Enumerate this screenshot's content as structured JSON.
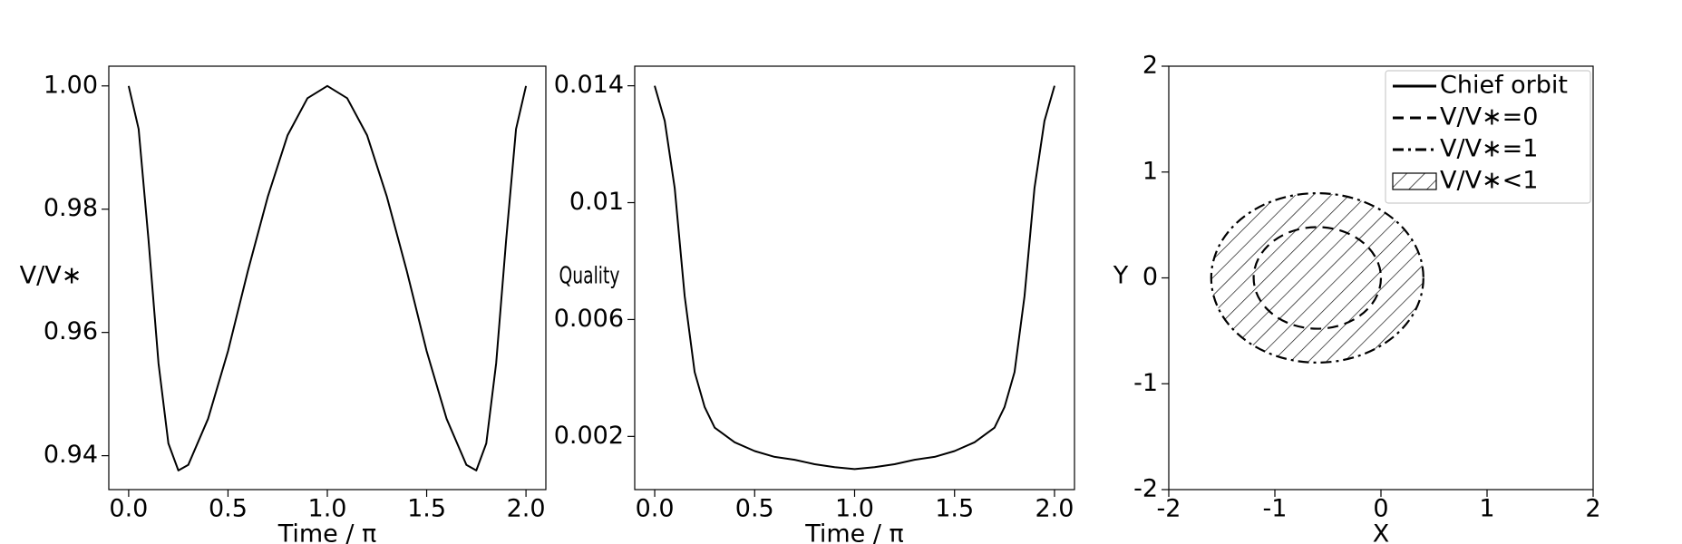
{
  "chart_data": [
    {
      "type": "line",
      "xlabel": "Time / π",
      "ylabel": "V/V∗",
      "color": "#000000",
      "x": [
        0,
        0.05,
        0.1,
        0.15,
        0.2,
        0.25,
        0.3,
        0.4,
        0.5,
        0.6,
        0.7,
        0.8,
        0.9,
        1.0,
        1.1,
        1.2,
        1.3,
        1.4,
        1.5,
        1.6,
        1.7,
        1.75,
        1.8,
        1.85,
        1.9,
        1.95,
        2.0
      ],
      "values": [
        1.0,
        0.993,
        0.975,
        0.955,
        0.942,
        0.9376,
        0.9385,
        0.946,
        0.957,
        0.97,
        0.982,
        0.992,
        0.998,
        1.0,
        0.998,
        0.992,
        0.982,
        0.97,
        0.957,
        0.946,
        0.9385,
        0.9376,
        0.942,
        0.955,
        0.975,
        0.993,
        1.0
      ],
      "xlim": [
        -0.1,
        2.1
      ],
      "ylim": [
        0.9345,
        1.0032
      ],
      "xticks": [
        {
          "value": 0,
          "label": "0.0"
        },
        {
          "value": 0.5,
          "label": "0.5"
        },
        {
          "value": 1,
          "label": "1.0"
        },
        {
          "value": 1.5,
          "label": "1.5"
        },
        {
          "value": 2,
          "label": "2.0"
        }
      ],
      "yticks": [
        0.94,
        0.96,
        0.98,
        {
          "value": 1,
          "label": "1.00"
        }
      ]
    },
    {
      "type": "line",
      "xlabel": "Time / π",
      "ylabel": "Quality",
      "color": "#000000",
      "x": [
        0,
        0.05,
        0.1,
        0.15,
        0.2,
        0.25,
        0.3,
        0.4,
        0.5,
        0.6,
        0.7,
        0.8,
        0.9,
        1.0,
        1.1,
        1.2,
        1.3,
        1.4,
        1.5,
        1.6,
        1.7,
        1.75,
        1.8,
        1.85,
        1.9,
        1.95,
        2.0
      ],
      "values": [
        0.014,
        0.0128,
        0.0105,
        0.0068,
        0.0042,
        0.003,
        0.0023,
        0.0018,
        0.0015,
        0.0013,
        0.0012,
        0.00105,
        0.00095,
        0.00088,
        0.00095,
        0.00105,
        0.0012,
        0.0013,
        0.0015,
        0.0018,
        0.0023,
        0.003,
        0.0042,
        0.0068,
        0.0105,
        0.0128,
        0.014
      ],
      "xlim": [
        -0.1,
        2.1
      ],
      "ylim": [
        0.00018,
        0.01467
      ],
      "xticks": [
        {
          "value": 0,
          "label": "0.0"
        },
        {
          "value": 0.5,
          "label": "0.5"
        },
        {
          "value": 1,
          "label": "1.0"
        },
        {
          "value": 1.5,
          "label": "1.5"
        },
        {
          "value": 2,
          "label": "2.0"
        }
      ],
      "yticks": [
        0.002,
        0.006,
        0.01,
        0.014
      ]
    },
    {
      "type": "shape",
      "xlabel": "X",
      "ylabel": "Y",
      "legend": "upper right",
      "xlim": [
        -2,
        2
      ],
      "ylim": [
        -2,
        2
      ],
      "xticks": [
        -2,
        -1,
        0,
        1,
        2
      ],
      "yticks": [
        -2,
        -1,
        0,
        1,
        2
      ],
      "series": [
        {
          "name": "Chief orbit",
          "style": "solid"
        },
        {
          "name": "V/V∗=0",
          "style": "dashed",
          "center": [
            -0.6,
            0
          ],
          "radii": [
            0.6,
            0.48
          ]
        },
        {
          "name": "V/V∗=1",
          "style": "dashdot",
          "center": [
            -0.6,
            0
          ],
          "radii": [
            1.0,
            0.8
          ]
        },
        {
          "name": "V/V∗<1",
          "style": "hatch",
          "center": [
            -0.6,
            0
          ],
          "radii": [
            1.0,
            0.8
          ]
        }
      ]
    }
  ]
}
